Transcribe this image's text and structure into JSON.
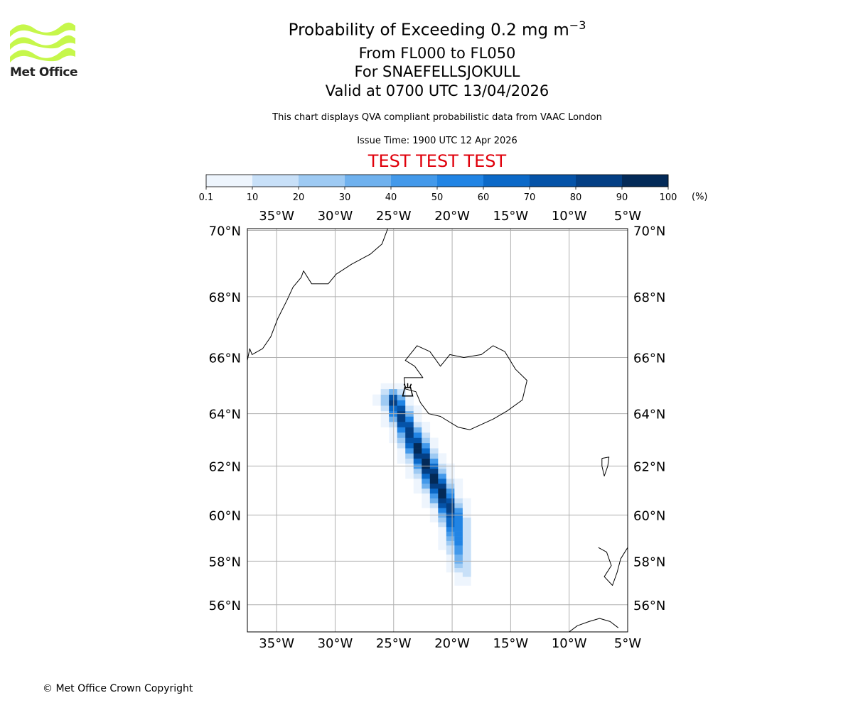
{
  "logo": {
    "text": "Met Office",
    "color": "#c6f74b"
  },
  "title": {
    "main_prefix": "Probability of Exceeding 0.2 mg m",
    "main_sup": "−3",
    "line2": "From FL000 to FL050",
    "line3": "For SNAEFELLSJOKULL",
    "line4": "Valid at 0700 UTC 13/04/2026",
    "description": "This chart displays QVA compliant probabilistic data from VAAC London",
    "issue_time": "Issue Time: 1900 UTC 12 Apr 2026",
    "test_banner": "TEST TEST TEST",
    "test_color": "#e0000b"
  },
  "colorbar": {
    "ticks": [
      "0.1",
      "10",
      "20",
      "30",
      "40",
      "50",
      "60",
      "70",
      "80",
      "90",
      "100"
    ],
    "colors": [
      "#eef5fd",
      "#c8e0f8",
      "#9ecaf3",
      "#6fb1ee",
      "#4399ea",
      "#2184e4",
      "#0b69c8",
      "#0553a8",
      "#043f84",
      "#032a58"
    ],
    "unit_label": "(%)"
  },
  "map": {
    "lon_range": [
      -37.5,
      -5
    ],
    "lat_range": [
      54.7,
      70.05
    ],
    "lon_ticks": [
      -35,
      -30,
      -25,
      -20,
      -15,
      -10,
      -5
    ],
    "lon_tick_labels": [
      "35°W",
      "30°W",
      "25°W",
      "20°W",
      "15°W",
      "10°W",
      "5°W"
    ],
    "lat_ticks": [
      56,
      58,
      60,
      62,
      64,
      66,
      68,
      70
    ],
    "lat_tick_labels": [
      "56°N",
      "58°N",
      "60°N",
      "62°N",
      "64°N",
      "66°N",
      "68°N",
      "70°N"
    ],
    "volcano_name": "SNAEFELLSJOKULL",
    "volcano_location": {
      "lon": -23.8,
      "lat": 64.8
    },
    "plume_axis": [
      {
        "lon": -25.0,
        "lat": 64.5,
        "peak": 85,
        "half_width_deg": 1.3
      },
      {
        "lon": -23.9,
        "lat": 63.5,
        "peak": 88,
        "half_width_deg": 1.4
      },
      {
        "lon": -22.5,
        "lat": 62.3,
        "peak": 95,
        "half_width_deg": 1.5
      },
      {
        "lon": -21.0,
        "lat": 61.0,
        "peak": 98,
        "half_width_deg": 1.5
      },
      {
        "lon": -19.9,
        "lat": 59.9,
        "peak": 80,
        "half_width_deg": 1.45
      },
      {
        "lon": -19.4,
        "lat": 58.4,
        "peak": 45,
        "half_width_deg": 1.2
      },
      {
        "lon": -19.0,
        "lat": 57.4,
        "peak": 15,
        "half_width_deg": 1.0
      }
    ],
    "coastlines": {
      "greenland": [
        [
          -37.5,
          65.9
        ],
        [
          -37.3,
          66.3
        ],
        [
          -37.1,
          66.1
        ],
        [
          -36.2,
          66.3
        ],
        [
          -35.5,
          66.7
        ],
        [
          -34.9,
          67.3
        ],
        [
          -34.1,
          67.9
        ],
        [
          -33.6,
          68.3
        ],
        [
          -32.9,
          68.6
        ],
        [
          -32.7,
          68.8
        ],
        [
          -32.0,
          68.4
        ],
        [
          -30.6,
          68.4
        ],
        [
          -29.9,
          68.7
        ],
        [
          -28.6,
          69.0
        ],
        [
          -27.0,
          69.3
        ],
        [
          -26.0,
          69.6
        ],
        [
          -25.5,
          70.05
        ]
      ],
      "iceland": [
        [
          -24.0,
          64.9
        ],
        [
          -23.1,
          64.8
        ],
        [
          -22.7,
          64.4
        ],
        [
          -22.0,
          64.0
        ],
        [
          -21.0,
          63.9
        ],
        [
          -19.5,
          63.5
        ],
        [
          -18.5,
          63.4
        ],
        [
          -16.5,
          63.8
        ],
        [
          -15.3,
          64.1
        ],
        [
          -14.0,
          64.5
        ],
        [
          -13.6,
          65.2
        ],
        [
          -14.6,
          65.6
        ],
        [
          -15.5,
          66.2
        ],
        [
          -16.5,
          66.4
        ],
        [
          -17.5,
          66.1
        ],
        [
          -19.0,
          66.0
        ],
        [
          -20.2,
          66.1
        ],
        [
          -21.0,
          65.7
        ],
        [
          -21.9,
          66.2
        ],
        [
          -23.0,
          66.4
        ],
        [
          -24.0,
          65.9
        ],
        [
          -23.2,
          65.7
        ],
        [
          -22.5,
          65.3
        ],
        [
          -24.1,
          65.3
        ],
        [
          -24.0,
          64.9
        ]
      ],
      "faroe": [
        [
          -7.2,
          62.3
        ],
        [
          -6.6,
          62.35
        ],
        [
          -6.7,
          62.0
        ],
        [
          -7.0,
          61.6
        ],
        [
          -7.2,
          62.0
        ],
        [
          -7.2,
          62.3
        ]
      ],
      "scotland_w": [
        [
          -7.5,
          58.6
        ],
        [
          -6.8,
          58.4
        ],
        [
          -6.4,
          57.8
        ],
        [
          -7.0,
          57.3
        ],
        [
          -6.3,
          56.9
        ],
        [
          -5.9,
          57.5
        ],
        [
          -5.6,
          58.1
        ],
        [
          -5.0,
          58.6
        ]
      ],
      "ireland_n": [
        [
          -10.0,
          54.7
        ],
        [
          -9.3,
          55.0
        ],
        [
          -8.3,
          55.2
        ],
        [
          -7.4,
          55.35
        ],
        [
          -6.5,
          55.2
        ],
        [
          -5.8,
          54.9
        ]
      ]
    }
  },
  "copyright": "© Met Office Crown Copyright"
}
